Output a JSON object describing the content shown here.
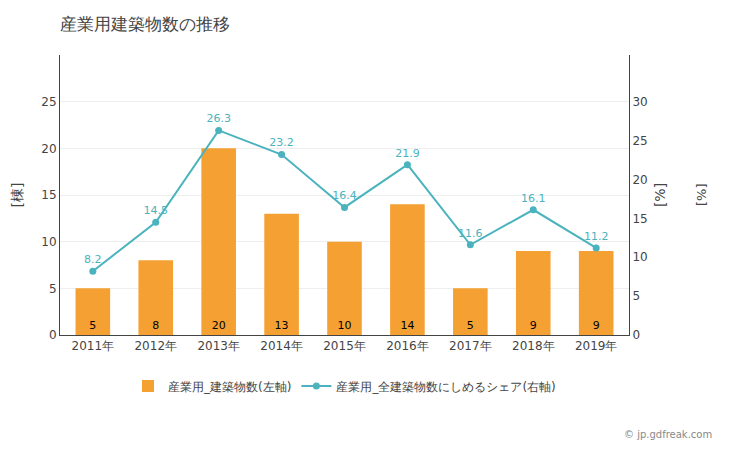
{
  "chart_data": {
    "type": "bar",
    "title": "産業用建築物数の推移",
    "categories": [
      "2011年",
      "2012年",
      "2013年",
      "2014年",
      "2015年",
      "2016年",
      "2017年",
      "2018年",
      "2019年"
    ],
    "series": [
      {
        "name": "産業用_建築物数(左軸)",
        "type": "bar",
        "color": "#f5a033",
        "values": [
          5,
          8,
          20,
          13,
          10,
          14,
          5,
          9,
          9
        ],
        "data_labels": true
      },
      {
        "name": "産業用_全建築物数にしめるシェア(右軸)",
        "type": "line",
        "axis": "y2",
        "color": "#4ab3be",
        "marker": "circle",
        "line_style": "solid",
        "values": [
          8.2,
          14.5,
          26.3,
          23.2,
          16.4,
          21.9,
          11.6,
          16.1,
          11.2
        ],
        "data_labels": true
      }
    ],
    "ylabel": "[棟]",
    "y2label": "[%]",
    "ylim": [
      0,
      30
    ],
    "yticks": [
      0,
      5,
      10,
      15,
      20,
      25
    ],
    "y2lim": [
      0,
      36
    ],
    "y2ticks": [
      0,
      5,
      10,
      15,
      20,
      25,
      30
    ],
    "grid": true,
    "legend": "bottom",
    "annotations": [
      "[%]",
      "© jp.gdfreak.com"
    ]
  }
}
